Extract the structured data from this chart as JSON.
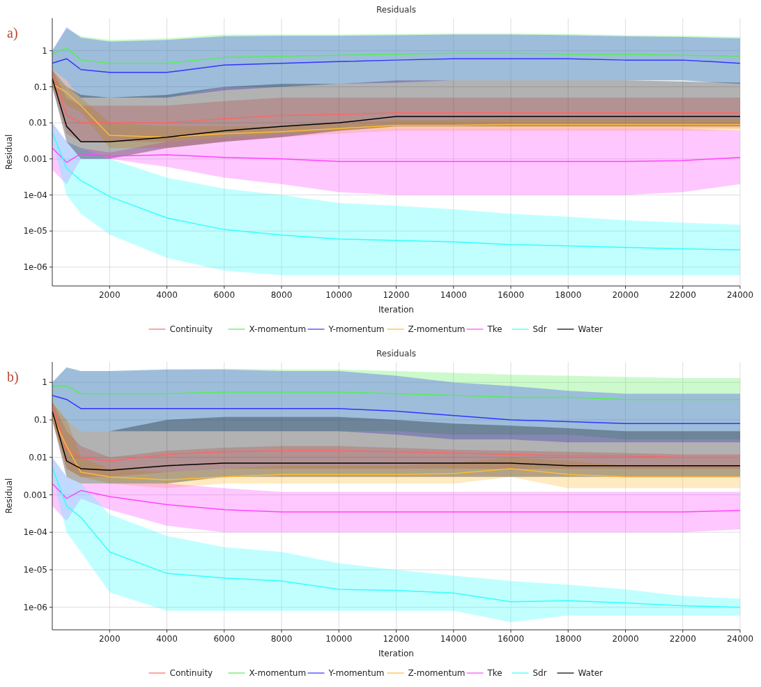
{
  "chart_data": [
    {
      "type": "line",
      "title": "Residuals",
      "xlabel": "Iteration",
      "ylabel": "Residual",
      "annotations": [
        "a)"
      ],
      "log": "y",
      "grid": true,
      "legend": "bottom",
      "marker": "none",
      "line_style": "solid",
      "x": [
        0,
        500,
        1000,
        2000,
        4000,
        6000,
        8000,
        10000,
        12000,
        14000,
        16000,
        18000,
        20000,
        22000,
        24000
      ],
      "xlim": [
        0,
        24000
      ],
      "xticks": [
        2000,
        4000,
        6000,
        8000,
        10000,
        12000,
        14000,
        16000,
        18000,
        20000,
        22000,
        24000
      ],
      "ylim": [
        3e-07,
        8
      ],
      "yticks": [
        {
          "value": 1e-06,
          "label": "1e-06"
        },
        {
          "value": 1e-05,
          "label": "1e-05"
        },
        {
          "value": 0.0001,
          "label": "1e-04"
        },
        0.001,
        0.01,
        0.1,
        1
      ],
      "series": [
        {
          "name": "Continuity",
          "color": "#ff6666",
          "values": [
            0.25,
            0.016,
            0.01,
            0.01,
            0.01,
            0.013,
            0.016,
            0.017,
            0.019,
            0.019,
            0.019,
            0.019,
            0.019,
            0.019,
            0.019
          ],
          "lower": [
            0.1,
            0.005,
            0.003,
            0.003,
            0.003,
            0.004,
            0.005,
            0.006,
            0.007,
            0.007,
            0.007,
            0.007,
            0.007,
            0.007,
            0.007
          ],
          "upper": [
            0.3,
            0.05,
            0.03,
            0.03,
            0.03,
            0.04,
            0.05,
            0.05,
            0.05,
            0.05,
            0.05,
            0.05,
            0.05,
            0.05,
            0.05
          ]
        },
        {
          "name": "X-momentum",
          "color": "#55ee55",
          "values": [
            0.8,
            1.2,
            0.55,
            0.45,
            0.45,
            0.65,
            0.7,
            0.75,
            0.8,
            0.85,
            0.85,
            0.8,
            0.8,
            0.75,
            0.7
          ],
          "lower": [
            0.3,
            0.15,
            0.05,
            0.05,
            0.05,
            0.1,
            0.1,
            0.12,
            0.15,
            0.15,
            0.15,
            0.15,
            0.15,
            0.15,
            0.12
          ],
          "upper": [
            1,
            4,
            2.5,
            2,
            2.2,
            2.8,
            2.8,
            2.8,
            2.9,
            3,
            3,
            2.9,
            2.7,
            2.6,
            2.4
          ]
        },
        {
          "name": "Y-momentum",
          "color": "#3333ff",
          "values": [
            0.45,
            0.6,
            0.3,
            0.25,
            0.25,
            0.4,
            0.45,
            0.5,
            0.55,
            0.6,
            0.6,
            0.6,
            0.55,
            0.55,
            0.45
          ],
          "lower": [
            0.3,
            0.1,
            0.05,
            0.05,
            0.05,
            0.08,
            0.1,
            0.12,
            0.13,
            0.15,
            0.15,
            0.15,
            0.15,
            0.15,
            0.12
          ],
          "upper": [
            1,
            4.5,
            2.3,
            1.8,
            2,
            2.5,
            2.6,
            2.6,
            2.7,
            2.8,
            2.8,
            2.7,
            2.5,
            2.4,
            2.2
          ]
        },
        {
          "name": "Z-momentum",
          "color": "#ffbb33",
          "values": [
            0.12,
            0.07,
            0.03,
            0.0045,
            0.004,
            0.005,
            0.0057,
            0.007,
            0.0085,
            0.0085,
            0.009,
            0.009,
            0.009,
            0.009,
            0.009
          ],
          "lower": [
            0.1,
            0.03,
            0.02,
            0.002,
            0.002,
            0.003,
            0.004,
            0.005,
            0.006,
            0.006,
            0.006,
            0.006,
            0.006,
            0.006,
            0.006
          ],
          "upper": [
            0.3,
            0.15,
            0.05,
            0.01,
            0.008,
            0.008,
            0.008,
            0.01,
            0.012,
            0.012,
            0.013,
            0.013,
            0.013,
            0.013,
            0.013
          ]
        },
        {
          "name": "Tke",
          "color": "#ff44ff",
          "values": [
            0.002,
            0.0008,
            0.0014,
            0.0012,
            0.0013,
            0.0011,
            0.001,
            0.00085,
            0.00085,
            0.00085,
            0.00085,
            0.00085,
            0.00085,
            0.0009,
            0.0011
          ],
          "lower": [
            0.0005,
            0.0002,
            0.001,
            0.001,
            0.0006,
            0.0003,
            0.0002,
            0.00012,
            0.0001,
            0.0001,
            0.0001,
            0.0001,
            0.0001,
            0.00012,
            0.0002
          ],
          "upper": [
            0.01,
            0.003,
            0.002,
            0.0015,
            0.003,
            0.004,
            0.005,
            0.006,
            0.007,
            0.007,
            0.007,
            0.007,
            0.007,
            0.007,
            0.006
          ]
        },
        {
          "name": "Sdr",
          "color": "#33ffff",
          "values": [
            0.0055,
            0.00055,
            0.00025,
            9e-05,
            2.3e-05,
            1.1e-05,
            7.7e-06,
            6e-06,
            5.5e-06,
            5e-06,
            4.2e-06,
            3.9e-06,
            3.5e-06,
            3.2e-06,
            3e-06
          ],
          "lower": [
            0.003,
            0.0001,
            3e-05,
            8e-06,
            1.8e-06,
            8e-07,
            6e-07,
            6e-07,
            6e-07,
            6e-07,
            6e-07,
            6e-07,
            6e-07,
            6e-07,
            6e-07
          ],
          "upper": [
            0.01,
            0.003,
            0.002,
            0.001,
            0.0003,
            0.00015,
            0.0001,
            6e-05,
            5e-05,
            4e-05,
            3e-05,
            2.5e-05,
            2e-05,
            1.7e-05,
            1.5e-05
          ]
        },
        {
          "name": "Water",
          "color": "#000000",
          "values": [
            0.17,
            0.008,
            0.003,
            0.003,
            0.004,
            0.006,
            0.008,
            0.01,
            0.015,
            0.015,
            0.015,
            0.015,
            0.015,
            0.015,
            0.015
          ],
          "lower": [
            0.1,
            0.003,
            0.001,
            0.001,
            0.002,
            0.003,
            0.004,
            0.006,
            0.008,
            0.008,
            0.008,
            0.008,
            0.008,
            0.008,
            0.008
          ],
          "upper": [
            0.3,
            0.1,
            0.06,
            0.05,
            0.06,
            0.1,
            0.12,
            0.12,
            0.15,
            0.15,
            0.15,
            0.15,
            0.15,
            0.14,
            0.13
          ]
        }
      ]
    },
    {
      "type": "line",
      "title": "Residuals",
      "xlabel": "Iteration",
      "ylabel": "Residual",
      "annotations": [
        "b)"
      ],
      "log": "y",
      "grid": true,
      "legend": "bottom",
      "marker": "none",
      "line_style": "solid",
      "x": [
        0,
        500,
        1000,
        2000,
        4000,
        6000,
        8000,
        10000,
        12000,
        14000,
        16000,
        18000,
        20000,
        22000,
        24000
      ],
      "xlim": [
        0,
        24000
      ],
      "xticks": [
        2000,
        4000,
        6000,
        8000,
        10000,
        12000,
        14000,
        16000,
        18000,
        20000,
        22000,
        24000
      ],
      "ylim": [
        2.5e-07,
        3.5
      ],
      "yticks": [
        {
          "value": 1e-06,
          "label": "1e-06"
        },
        {
          "value": 1e-05,
          "label": "1e-05"
        },
        {
          "value": 0.0001,
          "label": "1e-04"
        },
        0.001,
        0.01,
        0.1,
        1
      ],
      "series": [
        {
          "name": "Continuity",
          "color": "#ff6666",
          "values": [
            0.25,
            0.016,
            0.01,
            0.008,
            0.012,
            0.014,
            0.015,
            0.015,
            0.014,
            0.013,
            0.012,
            0.011,
            0.011,
            0.01,
            0.01
          ],
          "lower": [
            0.1,
            0.005,
            0.003,
            0.003,
            0.004,
            0.005,
            0.005,
            0.005,
            0.005,
            0.005,
            0.005,
            0.005,
            0.005,
            0.005,
            0.005
          ],
          "upper": [
            0.3,
            0.05,
            0.02,
            0.01,
            0.015,
            0.018,
            0.02,
            0.02,
            0.018,
            0.016,
            0.015,
            0.014,
            0.013,
            0.012,
            0.012
          ]
        },
        {
          "name": "X-momentum",
          "color": "#55ee55",
          "values": [
            0.8,
            0.8,
            0.5,
            0.5,
            0.5,
            0.55,
            0.55,
            0.55,
            0.5,
            0.45,
            0.4,
            0.4,
            0.35,
            0.35,
            0.35
          ],
          "lower": [
            0.3,
            0.1,
            0.05,
            0.05,
            0.05,
            0.05,
            0.05,
            0.05,
            0.05,
            0.04,
            0.04,
            0.04,
            0.03,
            0.03,
            0.03
          ],
          "upper": [
            1,
            2.5,
            2,
            2,
            2.2,
            2.3,
            2.2,
            2.2,
            2,
            1.8,
            1.6,
            1.5,
            1.4,
            1.3,
            1.3
          ]
        },
        {
          "name": "Y-momentum",
          "color": "#3333ff",
          "values": [
            0.45,
            0.35,
            0.2,
            0.2,
            0.2,
            0.2,
            0.2,
            0.2,
            0.17,
            0.13,
            0.1,
            0.09,
            0.08,
            0.08,
            0.08
          ],
          "lower": [
            0.3,
            0.1,
            0.05,
            0.05,
            0.05,
            0.05,
            0.05,
            0.05,
            0.04,
            0.03,
            0.03,
            0.025,
            0.025,
            0.025,
            0.025
          ],
          "upper": [
            1,
            2.5,
            2,
            2,
            2.2,
            2.2,
            2,
            2,
            1.5,
            1,
            0.8,
            0.6,
            0.5,
            0.5,
            0.5
          ]
        },
        {
          "name": "Z-momentum",
          "color": "#ffbb33",
          "values": [
            0.12,
            0.02,
            0.004,
            0.003,
            0.0025,
            0.003,
            0.0035,
            0.0035,
            0.0035,
            0.0037,
            0.005,
            0.0035,
            0.003,
            0.003,
            0.003
          ],
          "lower": [
            0.1,
            0.005,
            0.003,
            0.002,
            0.0015,
            0.002,
            0.002,
            0.002,
            0.002,
            0.002,
            0.003,
            0.0015,
            0.0015,
            0.0015,
            0.0015
          ],
          "upper": [
            0.3,
            0.1,
            0.01,
            0.005,
            0.004,
            0.005,
            0.006,
            0.006,
            0.006,
            0.007,
            0.01,
            0.008,
            0.006,
            0.006,
            0.006
          ]
        },
        {
          "name": "Tke",
          "color": "#ff44ff",
          "values": [
            0.002,
            0.0008,
            0.0013,
            0.0009,
            0.00055,
            0.0004,
            0.00035,
            0.00035,
            0.00035,
            0.00035,
            0.00035,
            0.00035,
            0.00035,
            0.00035,
            0.00038
          ],
          "lower": [
            0.0005,
            0.0002,
            0.0008,
            0.0004,
            0.00015,
            0.0001,
            0.0001,
            0.0001,
            0.0001,
            0.0001,
            0.0001,
            0.0001,
            0.0001,
            0.0001,
            0.00012
          ],
          "upper": [
            0.01,
            0.003,
            0.002,
            0.002,
            0.002,
            0.0015,
            0.0012,
            0.0012,
            0.0012,
            0.0012,
            0.0012,
            0.0012,
            0.0012,
            0.0012,
            0.0012
          ]
        },
        {
          "name": "Sdr",
          "color": "#33ffff",
          "values": [
            0.0055,
            0.0005,
            0.00025,
            3e-05,
            8e-06,
            6e-06,
            5e-06,
            3e-06,
            2.8e-06,
            2.4e-06,
            1.4e-06,
            1.5e-06,
            1.3e-06,
            1.1e-06,
            1e-06
          ],
          "lower": [
            0.003,
            0.0001,
            3e-05,
            2.5e-06,
            8e-07,
            8e-07,
            8e-07,
            8e-07,
            8e-07,
            8e-07,
            4e-07,
            6e-07,
            6e-07,
            6e-07,
            6e-07
          ],
          "upper": [
            0.01,
            0.003,
            0.002,
            0.0003,
            8e-05,
            4e-05,
            3e-05,
            1.5e-05,
            1e-05,
            7e-06,
            5e-06,
            4e-06,
            3e-06,
            2e-06,
            1.7e-06
          ]
        },
        {
          "name": "Water",
          "color": "#000000",
          "values": [
            0.17,
            0.008,
            0.005,
            0.0045,
            0.006,
            0.007,
            0.007,
            0.007,
            0.007,
            0.007,
            0.007,
            0.006,
            0.006,
            0.006,
            0.006
          ],
          "lower": [
            0.1,
            0.003,
            0.002,
            0.002,
            0.002,
            0.003,
            0.003,
            0.003,
            0.003,
            0.003,
            0.003,
            0.003,
            0.003,
            0.003,
            0.003
          ],
          "upper": [
            0.3,
            0.1,
            0.05,
            0.05,
            0.1,
            0.12,
            0.12,
            0.12,
            0.1,
            0.08,
            0.07,
            0.06,
            0.05,
            0.05,
            0.05
          ]
        }
      ]
    }
  ]
}
